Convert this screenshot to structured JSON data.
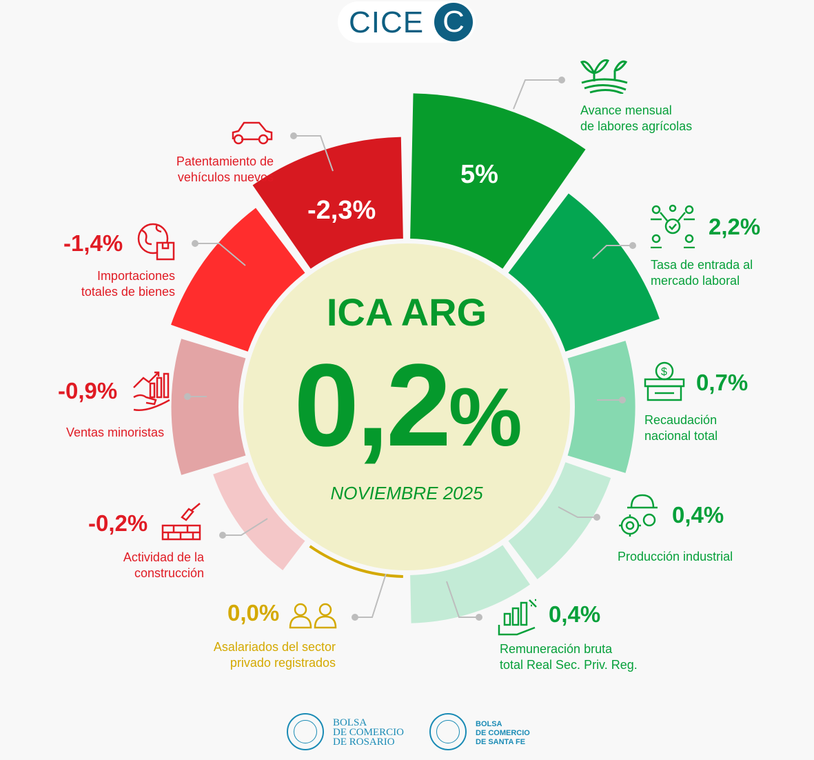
{
  "logo": {
    "text": "CICE",
    "mark": "C"
  },
  "center": {
    "title": "ICA ARG",
    "value": "0,2",
    "unit": "%",
    "period": "NOVIEMBRE 2025",
    "color": "#05992c"
  },
  "chart_data": {
    "type": "radial-bar",
    "title": "ICA ARG",
    "total": 0.2,
    "period": "NOVIEMBRE 2025",
    "indicators": [
      {
        "label": "Avance mensual de labores agrícolas",
        "display": "5%",
        "value": 5.0,
        "color": "#079c2c"
      },
      {
        "label": "Tasa de entrada al mercado laboral",
        "display": "2,2%",
        "value": 2.2,
        "color": "#04a651"
      },
      {
        "label": "Recaudación nacional total",
        "display": "0,7%",
        "value": 0.7,
        "color": "#86d9b0"
      },
      {
        "label": "Producción industrial",
        "display": "0,4%",
        "value": 0.4,
        "color": "#c3ebd6"
      },
      {
        "label": "Remuneración bruta total Real Sec. Priv. Reg.",
        "display": "0,4%",
        "value": 0.4,
        "color": "#c3ebd6"
      },
      {
        "label": "Asalariados del sector privado registrados",
        "display": "0,0%",
        "value": 0.0,
        "color": "#d4a900"
      },
      {
        "label": "Actividad de la construcción",
        "display": "-0,2%",
        "value": -0.2,
        "color": "#f4c7c8"
      },
      {
        "label": "Ventas minoristas",
        "display": "-0,9%",
        "value": -0.9,
        "color": "#e3a4a5"
      },
      {
        "label": "Importaciones totales de bienes",
        "display": "-1,4%",
        "value": -1.4,
        "color": "#ff2d2d"
      },
      {
        "label": "Patentamiento de vehículos nuevos",
        "display": "-2,3%",
        "value": -2.3,
        "color": "#d71920"
      }
    ]
  },
  "labels": {
    "agro": [
      "Avance mensual",
      "de labores agrícolas"
    ],
    "laboral": [
      "Tasa de entrada al",
      "mercado laboral"
    ],
    "recaudacion": [
      "Recaudación",
      "nacional total"
    ],
    "industria": [
      "Producción industrial"
    ],
    "remuneracion": [
      "Remuneración bruta",
      "total Real Sec. Priv. Reg."
    ],
    "asalariados": [
      "Asalariados del sector",
      "privado registrados"
    ],
    "construccion": [
      "Actividad de la",
      "construcción"
    ],
    "ventas": [
      "Ventas minoristas"
    ],
    "importaciones": [
      "Importaciones",
      "totales de bienes"
    ],
    "patentamiento": [
      "Patentamiento de",
      "vehículos nuevos"
    ]
  },
  "footer": {
    "rosario": [
      "BOLSA",
      "DE COMERCIO",
      "DE ROSARIO"
    ],
    "santafe": [
      "BOLSA",
      "DE COMERCIO",
      "DE SANTA FE"
    ]
  }
}
